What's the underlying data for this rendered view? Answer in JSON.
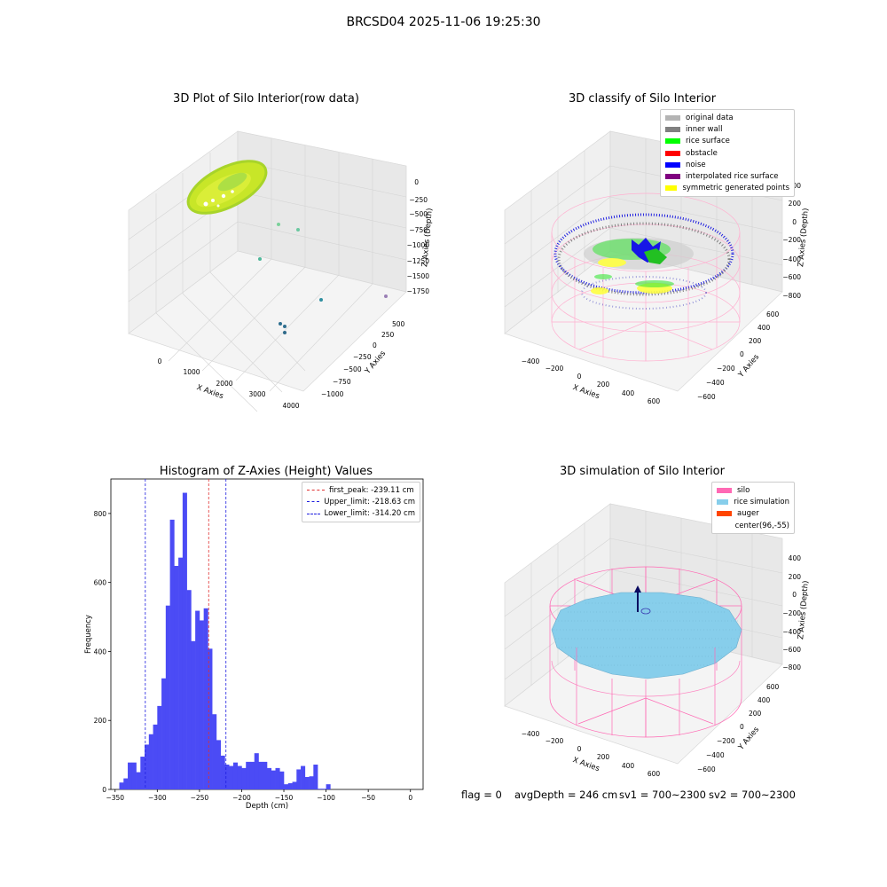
{
  "suptitle": "BRCSD04 2025-11-06 19:25:30",
  "panels": {
    "raw": {
      "title": "3D Plot of Silo Interior(row data)",
      "xlabel": "X Axies",
      "ylabel": "Y Axies",
      "zlabel": "Z Axies (Depth)",
      "xticks": [
        "0",
        "1000",
        "2000",
        "3000",
        "4000"
      ],
      "yticks": [
        "−1000",
        "−750",
        "−500",
        "−250",
        "0",
        "250",
        "500"
      ],
      "zticks": [
        "0",
        "−250",
        "−500",
        "−750",
        "−1000",
        "−1250",
        "−1500",
        "−1750"
      ]
    },
    "classify": {
      "title": "3D classify of Silo Interior",
      "xlabel": "X Axies",
      "ylabel": "Y Axies",
      "zlabel": "Z Axies (Depth)",
      "xticks": [
        "−400",
        "−200",
        "0",
        "200",
        "400",
        "600"
      ],
      "yticks": [
        "−600",
        "−400",
        "−200",
        "0",
        "200",
        "400",
        "600"
      ],
      "zticks": [
        "200",
        "0",
        "−200",
        "−400",
        "−600",
        "−800"
      ],
      "legend": [
        {
          "label": "original data",
          "color": "#b4b4b4"
        },
        {
          "label": "inner wall",
          "color": "#808080"
        },
        {
          "label": "rice surface",
          "color": "#00ff00"
        },
        {
          "label": "obstacle",
          "color": "#ff0000"
        },
        {
          "label": "noise",
          "color": "#0000ff"
        },
        {
          "label": "interpolated rice surface",
          "color": "#800080"
        },
        {
          "label": "symmetric generated points",
          "color": "#ffff00"
        }
      ]
    },
    "simulation": {
      "title": "3D simulation of Silo Interior",
      "xlabel": "X Axies",
      "ylabel": "Y Axies",
      "zlabel": "Z Axies (Depth)",
      "xticks": [
        "−400",
        "−200",
        "0",
        "200",
        "400",
        "600"
      ],
      "yticks": [
        "−600",
        "−400",
        "−200",
        "0",
        "200",
        "400",
        "600"
      ],
      "zticks": [
        "400",
        "200",
        "0",
        "−200",
        "−400",
        "−600",
        "−800"
      ],
      "legend": [
        {
          "label": "silo",
          "color": "#ff69b4"
        },
        {
          "label": "rice simulation",
          "color": "#87ceeb"
        },
        {
          "label": "auger",
          "color": "#ff4500"
        },
        {
          "label": "center(96,-55)",
          "color": ""
        }
      ]
    }
  },
  "footer": {
    "flag": "flag = 0",
    "avg_depth": "avgDepth = 246 cm",
    "sv1": "sv1 = 700~2300",
    "sv2": "sv2 = 700~2300"
  },
  "chart_data": [
    {
      "type": "scatter",
      "title": "3D Plot of Silo Interior(row data)",
      "xlabel": "X Axies",
      "ylabel": "Y Axies",
      "zlabel": "Z Axies (Depth)",
      "xlim": [
        -500,
        4200
      ],
      "ylim": [
        -1100,
        700
      ],
      "zlim": [
        -1900,
        100
      ]
    },
    {
      "type": "scatter",
      "title": "3D classify of Silo Interior",
      "xlim": [
        -500,
        700
      ],
      "ylim": [
        -700,
        700
      ],
      "zlim": [
        -900,
        300
      ],
      "series": [
        {
          "name": "original data"
        },
        {
          "name": "inner wall"
        },
        {
          "name": "rice surface"
        },
        {
          "name": "obstacle"
        },
        {
          "name": "noise"
        },
        {
          "name": "interpolated rice surface"
        },
        {
          "name": "symmetric generated points"
        }
      ]
    },
    {
      "type": "bar",
      "title": "Histogram of Z-Axies (Height) Values",
      "xlabel": "Depth (cm)",
      "ylabel": "Frequency",
      "xlim": [
        -355,
        15
      ],
      "ylim": [
        0,
        900
      ],
      "xticks": [
        -350,
        -300,
        -250,
        -200,
        -150,
        -100,
        -50,
        0
      ],
      "yticks": [
        0,
        200,
        400,
        600,
        800
      ],
      "bin_start": -345,
      "bin_width": 5,
      "bar_color": "#4b4bf5",
      "values": [
        20,
        32,
        78,
        78,
        50,
        95,
        130,
        160,
        188,
        242,
        322,
        533,
        782,
        648,
        672,
        860,
        578,
        430,
        518,
        490,
        525,
        408,
        218,
        143,
        98,
        72,
        68,
        78,
        68,
        62,
        80,
        80,
        105,
        80,
        80,
        62,
        55,
        62,
        52,
        15,
        18,
        22,
        58,
        68,
        36,
        38,
        72,
        2,
        2,
        15
      ],
      "vlines": [
        {
          "name": "first_peak: -239.11 cm",
          "x": -239.11,
          "color": "#e03030"
        },
        {
          "name": "Upper_limit: -218.63 cm",
          "x": -218.63,
          "color": "#2020e0"
        },
        {
          "name": "Lower_limit: -314.20 cm",
          "x": -314.2,
          "color": "#2020e0"
        }
      ]
    },
    {
      "type": "scatter",
      "title": "3D simulation of Silo Interior",
      "xlim": [
        -500,
        700
      ],
      "ylim": [
        -700,
        700
      ],
      "zlim": [
        -900,
        500
      ],
      "series": [
        {
          "name": "silo"
        },
        {
          "name": "rice simulation"
        },
        {
          "name": "auger"
        },
        {
          "name": "center(96,-55)"
        }
      ]
    }
  ]
}
